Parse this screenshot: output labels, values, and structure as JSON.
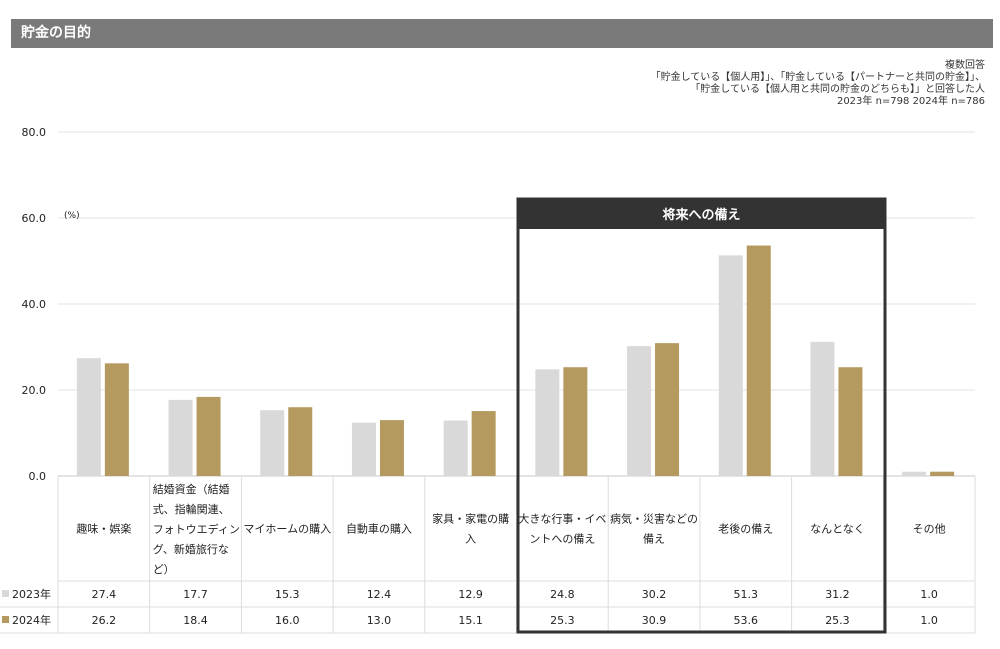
{
  "header": {
    "title": "貯金の目的"
  },
  "notes": [
    "複数回答",
    "「貯金している【個人用】」、「貯金している【パートナーと共同の貯金】」、",
    "「貯金している【個人用と共同の貯金のどちらも】」と回答した人",
    "2023年 n=798  2024年 n=786"
  ],
  "highlight": {
    "label": "将来への備え"
  },
  "chart_data": {
    "type": "bar",
    "unit_label": "(%)",
    "ylim": [
      0,
      80
    ],
    "yticks": [
      "0.0",
      "20.0",
      "40.0",
      "60.0",
      "80.0"
    ],
    "categories": [
      [
        "趣味・娯楽"
      ],
      [
        "結婚資金（結婚",
        "式、指輪関連、",
        "フォトウエディン",
        "グ、新婚旅行な",
        "ど）"
      ],
      [
        "マイホームの購入"
      ],
      [
        "自動車の購入"
      ],
      [
        "家具・家電の購",
        "入"
      ],
      [
        "大きな行事・イベ",
        "ントへの備え"
      ],
      [
        "病気・災害などの",
        "備え"
      ],
      [
        "老後の備え"
      ],
      [
        "なんとなく"
      ],
      [
        "その他"
      ]
    ],
    "series": [
      {
        "name": "2023年",
        "color": "#d9d9d9",
        "values": [
          27.4,
          17.7,
          15.3,
          12.4,
          12.9,
          24.8,
          30.2,
          51.3,
          31.2,
          1.0
        ],
        "labels": [
          "27.4",
          "17.7",
          "15.3",
          "12.4",
          "12.9",
          "24.8",
          "30.2",
          "51.3",
          "31.2",
          "1.0"
        ]
      },
      {
        "name": "2024年",
        "color": "#b59a5f",
        "values": [
          26.2,
          18.4,
          16.0,
          13.0,
          15.1,
          25.3,
          30.9,
          53.6,
          25.3,
          1.0
        ],
        "labels": [
          "26.2",
          "18.4",
          "16.0",
          "13.0",
          "15.1",
          "25.3",
          "30.9",
          "53.6",
          "25.3",
          "1.0"
        ]
      }
    ],
    "grid": true
  }
}
